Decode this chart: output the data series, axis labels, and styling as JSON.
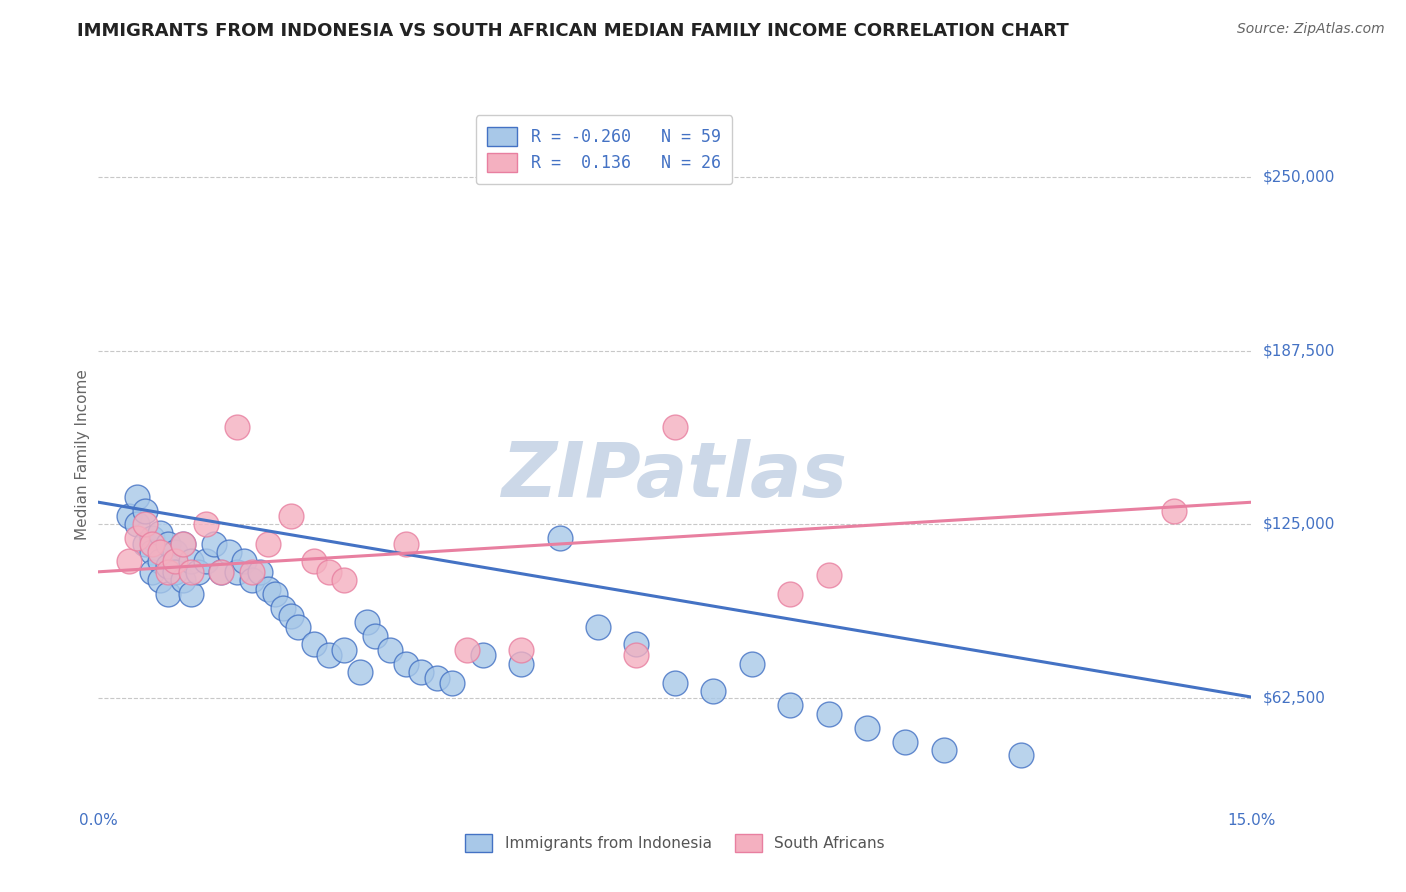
{
  "title": "IMMIGRANTS FROM INDONESIA VS SOUTH AFRICAN MEDIAN FAMILY INCOME CORRELATION CHART",
  "source": "Source: ZipAtlas.com",
  "ylabel": "Median Family Income",
  "xlim": [
    0.0,
    0.15
  ],
  "ylim": [
    25000,
    275000
  ],
  "yticks": [
    62500,
    125000,
    187500,
    250000
  ],
  "ytick_labels": [
    "$62,500",
    "$125,000",
    "$187,500",
    "$250,000"
  ],
  "xticks": [
    0.0,
    0.03,
    0.06,
    0.09,
    0.12,
    0.15
  ],
  "xtick_labels": [
    "0.0%",
    "",
    "",
    "",
    "",
    "15.0%"
  ],
  "grid_color": "#c8c8c8",
  "background_color": "#ffffff",
  "watermark": "ZIPatlas",
  "blue_color": "#4472c4",
  "pink_color": "#e87fa0",
  "blue_scatter_color": "#a8c8e8",
  "pink_scatter_color": "#f4b0c0",
  "title_color": "#222222",
  "title_fontsize": 13,
  "axis_label_color": "#666666",
  "tick_label_color": "#4472c4",
  "watermark_color": "#ccd8e8",
  "watermark_fontsize": 55,
  "legend1_label1": "R = -0.260",
  "legend1_label1b": "N = 59",
  "legend1_label2": "R =  0.136",
  "legend1_label2b": "N = 26",
  "legend2_label1": "Immigrants from Indonesia",
  "legend2_label2": "South Africans",
  "blue_line_x": [
    0.0,
    0.15
  ],
  "blue_line_y": [
    133000,
    63000
  ],
  "pink_line_x": [
    0.0,
    0.15
  ],
  "pink_line_y": [
    108000,
    133000
  ],
  "blue_scatter_x": [
    0.004,
    0.005,
    0.005,
    0.006,
    0.006,
    0.007,
    0.007,
    0.007,
    0.008,
    0.008,
    0.008,
    0.009,
    0.009,
    0.009,
    0.01,
    0.01,
    0.011,
    0.011,
    0.012,
    0.012,
    0.013,
    0.014,
    0.015,
    0.016,
    0.017,
    0.018,
    0.019,
    0.02,
    0.021,
    0.022,
    0.023,
    0.024,
    0.025,
    0.026,
    0.028,
    0.03,
    0.032,
    0.034,
    0.035,
    0.036,
    0.038,
    0.04,
    0.042,
    0.044,
    0.046,
    0.05,
    0.055,
    0.06,
    0.065,
    0.07,
    0.075,
    0.08,
    0.085,
    0.09,
    0.095,
    0.1,
    0.105,
    0.11,
    0.12
  ],
  "blue_scatter_y": [
    128000,
    135000,
    125000,
    130000,
    118000,
    120000,
    115000,
    108000,
    122000,
    112000,
    105000,
    118000,
    110000,
    100000,
    115000,
    108000,
    118000,
    105000,
    112000,
    100000,
    108000,
    112000,
    118000,
    108000,
    115000,
    108000,
    112000,
    105000,
    108000,
    102000,
    100000,
    95000,
    92000,
    88000,
    82000,
    78000,
    80000,
    72000,
    90000,
    85000,
    80000,
    75000,
    72000,
    70000,
    68000,
    78000,
    75000,
    120000,
    88000,
    82000,
    68000,
    65000,
    75000,
    60000,
    57000,
    52000,
    47000,
    44000,
    42000
  ],
  "pink_scatter_x": [
    0.004,
    0.005,
    0.006,
    0.007,
    0.008,
    0.009,
    0.01,
    0.011,
    0.012,
    0.014,
    0.016,
    0.018,
    0.02,
    0.022,
    0.025,
    0.028,
    0.03,
    0.032,
    0.04,
    0.048,
    0.055,
    0.07,
    0.075,
    0.09,
    0.095,
    0.14
  ],
  "pink_scatter_y": [
    112000,
    120000,
    125000,
    118000,
    115000,
    108000,
    112000,
    118000,
    108000,
    125000,
    108000,
    160000,
    108000,
    118000,
    128000,
    112000,
    108000,
    105000,
    118000,
    80000,
    80000,
    78000,
    160000,
    100000,
    107000,
    130000
  ]
}
